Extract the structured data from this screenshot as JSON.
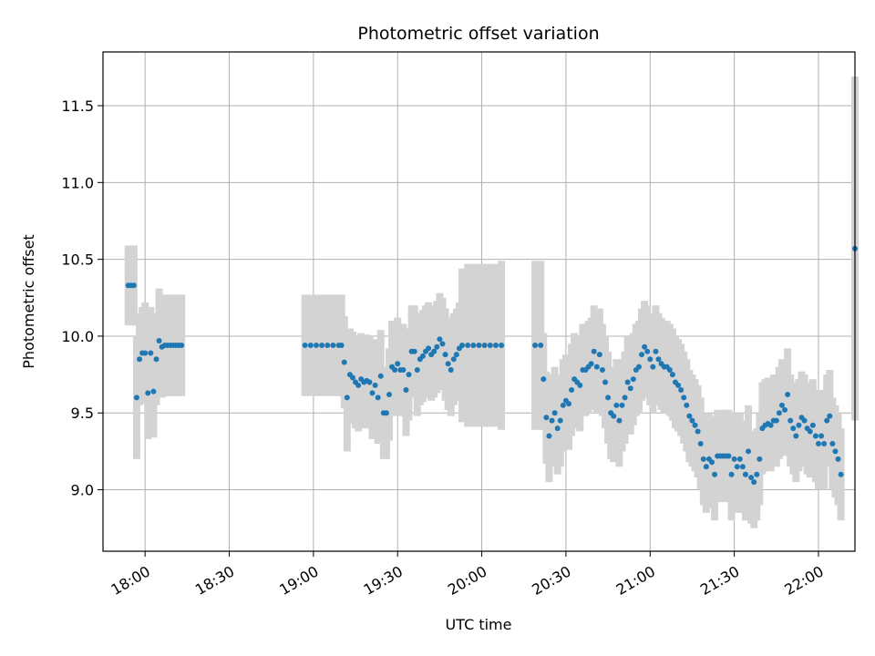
{
  "chart_data": {
    "type": "scatter",
    "title": "Photometric offset variation",
    "xlabel": "UTC time",
    "ylabel": "Photometric offset",
    "grid": true,
    "x_axis": {
      "type": "time",
      "range": [
        "17:45",
        "22:13"
      ],
      "ticks": [
        "18:00",
        "18:30",
        "19:00",
        "19:30",
        "20:00",
        "20:30",
        "21:00",
        "21:30",
        "22:00"
      ]
    },
    "ylim": [
      8.6,
      11.85
    ],
    "y_ticks": [
      "9.0",
      "9.5",
      "10.0",
      "10.5",
      "11.0",
      "11.5"
    ],
    "colors": {
      "points": "#1f77b4",
      "error_band": "#d3d3d3",
      "grid": "#b0b0b0"
    },
    "series": [
      {
        "values": [
          [
            "17:54",
            10.33,
            0.26
          ],
          [
            "17:55",
            10.33,
            0.26
          ],
          [
            "17:56",
            10.33,
            0.26
          ],
          [
            "17:57",
            9.6,
            0.4
          ],
          [
            "17:58",
            9.85,
            0.3
          ],
          [
            "17:59",
            9.89,
            0.3
          ],
          [
            "18:00",
            9.89,
            0.33
          ],
          [
            "18:01",
            9.63,
            0.3
          ],
          [
            "18:02",
            9.89,
            0.3
          ],
          [
            "18:03",
            9.64,
            0.3
          ],
          [
            "18:04",
            9.85,
            0.3
          ],
          [
            "18:05",
            9.97,
            0.34
          ],
          [
            "18:06",
            9.93,
            0.33
          ],
          [
            "18:07",
            9.94,
            0.33
          ],
          [
            "18:08",
            9.94,
            0.33
          ],
          [
            "18:09",
            9.94,
            0.33
          ],
          [
            "18:10",
            9.94,
            0.33
          ],
          [
            "18:11",
            9.94,
            0.33
          ],
          [
            "18:12",
            9.94,
            0.33
          ],
          [
            "18:13",
            9.94,
            0.33
          ],
          [
            "18:57",
            9.94,
            0.33
          ],
          [
            "18:59",
            9.94,
            0.33
          ],
          [
            "19:01",
            9.94,
            0.33
          ],
          [
            "19:03",
            9.94,
            0.33
          ],
          [
            "19:05",
            9.94,
            0.33
          ],
          [
            "19:07",
            9.94,
            0.33
          ],
          [
            "19:09",
            9.94,
            0.33
          ],
          [
            "19:10",
            9.94,
            0.33
          ],
          [
            "19:11",
            9.83,
            0.3
          ],
          [
            "19:12",
            9.6,
            0.35
          ],
          [
            "19:13",
            9.75,
            0.3
          ],
          [
            "19:14",
            9.73,
            0.3
          ],
          [
            "19:15",
            9.7,
            0.3
          ],
          [
            "19:16",
            9.68,
            0.3
          ],
          [
            "19:17",
            9.72,
            0.3
          ],
          [
            "19:18",
            9.7,
            0.3
          ],
          [
            "19:19",
            9.71,
            0.3
          ],
          [
            "19:20",
            9.7,
            0.3
          ],
          [
            "19:21",
            9.63,
            0.3
          ],
          [
            "19:22",
            9.68,
            0.3
          ],
          [
            "19:23",
            9.6,
            0.3
          ],
          [
            "19:24",
            9.74,
            0.3
          ],
          [
            "19:25",
            9.5,
            0.3
          ],
          [
            "19:26",
            9.5,
            0.3
          ],
          [
            "19:27",
            9.62,
            0.3
          ],
          [
            "19:28",
            9.8,
            0.3
          ],
          [
            "19:29",
            9.78,
            0.3
          ],
          [
            "19:30",
            9.82,
            0.3
          ],
          [
            "19:31",
            9.78,
            0.3
          ],
          [
            "19:32",
            9.78,
            0.3
          ],
          [
            "19:33",
            9.65,
            0.3
          ],
          [
            "19:34",
            9.75,
            0.3
          ],
          [
            "19:35",
            9.9,
            0.3
          ],
          [
            "19:36",
            9.9,
            0.3
          ],
          [
            "19:37",
            9.78,
            0.3
          ],
          [
            "19:38",
            9.85,
            0.3
          ],
          [
            "19:39",
            9.87,
            0.3
          ],
          [
            "19:40",
            9.9,
            0.3
          ],
          [
            "19:41",
            9.92,
            0.3
          ],
          [
            "19:42",
            9.88,
            0.3
          ],
          [
            "19:43",
            9.9,
            0.3
          ],
          [
            "19:44",
            9.93,
            0.3
          ],
          [
            "19:45",
            9.98,
            0.3
          ],
          [
            "19:46",
            9.95,
            0.3
          ],
          [
            "19:47",
            9.88,
            0.3
          ],
          [
            "19:48",
            9.82,
            0.3
          ],
          [
            "19:49",
            9.78,
            0.3
          ],
          [
            "19:50",
            9.85,
            0.3
          ],
          [
            "19:51",
            9.88,
            0.3
          ],
          [
            "19:52",
            9.92,
            0.3
          ],
          [
            "19:53",
            9.94,
            0.5
          ],
          [
            "19:55",
            9.94,
            0.53
          ],
          [
            "19:57",
            9.94,
            0.53
          ],
          [
            "19:59",
            9.94,
            0.53
          ],
          [
            "20:01",
            9.94,
            0.53
          ],
          [
            "20:03",
            9.94,
            0.53
          ],
          [
            "20:05",
            9.94,
            0.53
          ],
          [
            "20:07",
            9.94,
            0.55
          ],
          [
            "20:19",
            9.94,
            0.55
          ],
          [
            "20:21",
            9.94,
            0.55
          ],
          [
            "20:22",
            9.72,
            0.3
          ],
          [
            "20:23",
            9.47,
            0.3
          ],
          [
            "20:24",
            9.35,
            0.3
          ],
          [
            "20:25",
            9.45,
            0.3
          ],
          [
            "20:26",
            9.5,
            0.3
          ],
          [
            "20:27",
            9.4,
            0.3
          ],
          [
            "20:28",
            9.45,
            0.3
          ],
          [
            "20:29",
            9.55,
            0.3
          ],
          [
            "20:30",
            9.58,
            0.3
          ],
          [
            "20:31",
            9.56,
            0.3
          ],
          [
            "20:32",
            9.65,
            0.3
          ],
          [
            "20:33",
            9.72,
            0.3
          ],
          [
            "20:34",
            9.7,
            0.3
          ],
          [
            "20:35",
            9.68,
            0.3
          ],
          [
            "20:36",
            9.78,
            0.3
          ],
          [
            "20:37",
            9.78,
            0.3
          ],
          [
            "20:38",
            9.8,
            0.3
          ],
          [
            "20:39",
            9.82,
            0.3
          ],
          [
            "20:40",
            9.9,
            0.3
          ],
          [
            "20:41",
            9.8,
            0.3
          ],
          [
            "20:42",
            9.88,
            0.3
          ],
          [
            "20:43",
            9.78,
            0.3
          ],
          [
            "20:44",
            9.7,
            0.3
          ],
          [
            "20:45",
            9.6,
            0.3
          ],
          [
            "20:46",
            9.5,
            0.3
          ],
          [
            "20:47",
            9.48,
            0.3
          ],
          [
            "20:48",
            9.55,
            0.3
          ],
          [
            "20:49",
            9.45,
            0.3
          ],
          [
            "20:50",
            9.55,
            0.3
          ],
          [
            "20:51",
            9.6,
            0.3
          ],
          [
            "20:52",
            9.7,
            0.3
          ],
          [
            "20:53",
            9.66,
            0.3
          ],
          [
            "20:54",
            9.72,
            0.3
          ],
          [
            "20:55",
            9.78,
            0.3
          ],
          [
            "20:56",
            9.8,
            0.3
          ],
          [
            "20:57",
            9.88,
            0.3
          ],
          [
            "20:58",
            9.93,
            0.3
          ],
          [
            "20:59",
            9.9,
            0.3
          ],
          [
            "21:00",
            9.85,
            0.3
          ],
          [
            "21:01",
            9.8,
            0.3
          ],
          [
            "21:02",
            9.9,
            0.3
          ],
          [
            "21:03",
            9.85,
            0.3
          ],
          [
            "21:04",
            9.82,
            0.3
          ],
          [
            "21:05",
            9.8,
            0.3
          ],
          [
            "21:06",
            9.8,
            0.3
          ],
          [
            "21:07",
            9.78,
            0.3
          ],
          [
            "21:08",
            9.75,
            0.3
          ],
          [
            "21:09",
            9.7,
            0.3
          ],
          [
            "21:10",
            9.68,
            0.3
          ],
          [
            "21:11",
            9.65,
            0.3
          ],
          [
            "21:12",
            9.6,
            0.3
          ],
          [
            "21:13",
            9.55,
            0.3
          ],
          [
            "21:14",
            9.48,
            0.3
          ],
          [
            "21:15",
            9.45,
            0.3
          ],
          [
            "21:16",
            9.42,
            0.3
          ],
          [
            "21:17",
            9.38,
            0.3
          ],
          [
            "21:18",
            9.3,
            0.3
          ],
          [
            "21:19",
            9.2,
            0.3
          ],
          [
            "21:20",
            9.15,
            0.3
          ],
          [
            "21:21",
            9.2,
            0.3
          ],
          [
            "21:22",
            9.18,
            0.3
          ],
          [
            "21:23",
            9.1,
            0.3
          ],
          [
            "21:24",
            9.22,
            0.3
          ],
          [
            "21:25",
            9.22,
            0.3
          ],
          [
            "21:26",
            9.22,
            0.3
          ],
          [
            "21:27",
            9.22,
            0.3
          ],
          [
            "21:28",
            9.22,
            0.3
          ],
          [
            "21:29",
            9.1,
            0.3
          ],
          [
            "21:30",
            9.2,
            0.3
          ],
          [
            "21:31",
            9.15,
            0.3
          ],
          [
            "21:32",
            9.2,
            0.3
          ],
          [
            "21:33",
            9.15,
            0.3
          ],
          [
            "21:34",
            9.1,
            0.3
          ],
          [
            "21:35",
            9.25,
            0.3
          ],
          [
            "21:36",
            9.08,
            0.3
          ],
          [
            "21:37",
            9.05,
            0.3
          ],
          [
            "21:38",
            9.1,
            0.3
          ],
          [
            "21:39",
            9.2,
            0.3
          ],
          [
            "21:40",
            9.4,
            0.3
          ],
          [
            "21:41",
            9.42,
            0.3
          ],
          [
            "21:42",
            9.43,
            0.3
          ],
          [
            "21:43",
            9.42,
            0.3
          ],
          [
            "21:44",
            9.45,
            0.3
          ],
          [
            "21:45",
            9.45,
            0.3
          ],
          [
            "21:46",
            9.5,
            0.3
          ],
          [
            "21:47",
            9.55,
            0.3
          ],
          [
            "21:48",
            9.52,
            0.3
          ],
          [
            "21:49",
            9.62,
            0.3
          ],
          [
            "21:50",
            9.45,
            0.3
          ],
          [
            "21:51",
            9.4,
            0.3
          ],
          [
            "21:52",
            9.35,
            0.3
          ],
          [
            "21:53",
            9.42,
            0.3
          ],
          [
            "21:54",
            9.47,
            0.3
          ],
          [
            "21:55",
            9.45,
            0.3
          ],
          [
            "21:56",
            9.4,
            0.3
          ],
          [
            "21:57",
            9.38,
            0.3
          ],
          [
            "21:58",
            9.42,
            0.3
          ],
          [
            "21:59",
            9.35,
            0.3
          ],
          [
            "22:00",
            9.3,
            0.3
          ],
          [
            "22:01",
            9.35,
            0.3
          ],
          [
            "22:02",
            9.3,
            0.3
          ],
          [
            "22:03",
            9.45,
            0.3
          ],
          [
            "22:04",
            9.48,
            0.3
          ],
          [
            "22:05",
            9.3,
            0.3
          ],
          [
            "22:06",
            9.25,
            0.3
          ],
          [
            "22:07",
            9.2,
            0.3
          ],
          [
            "22:08",
            9.1,
            0.3
          ],
          [
            "22:13",
            10.57,
            1.12
          ]
        ]
      }
    ]
  }
}
